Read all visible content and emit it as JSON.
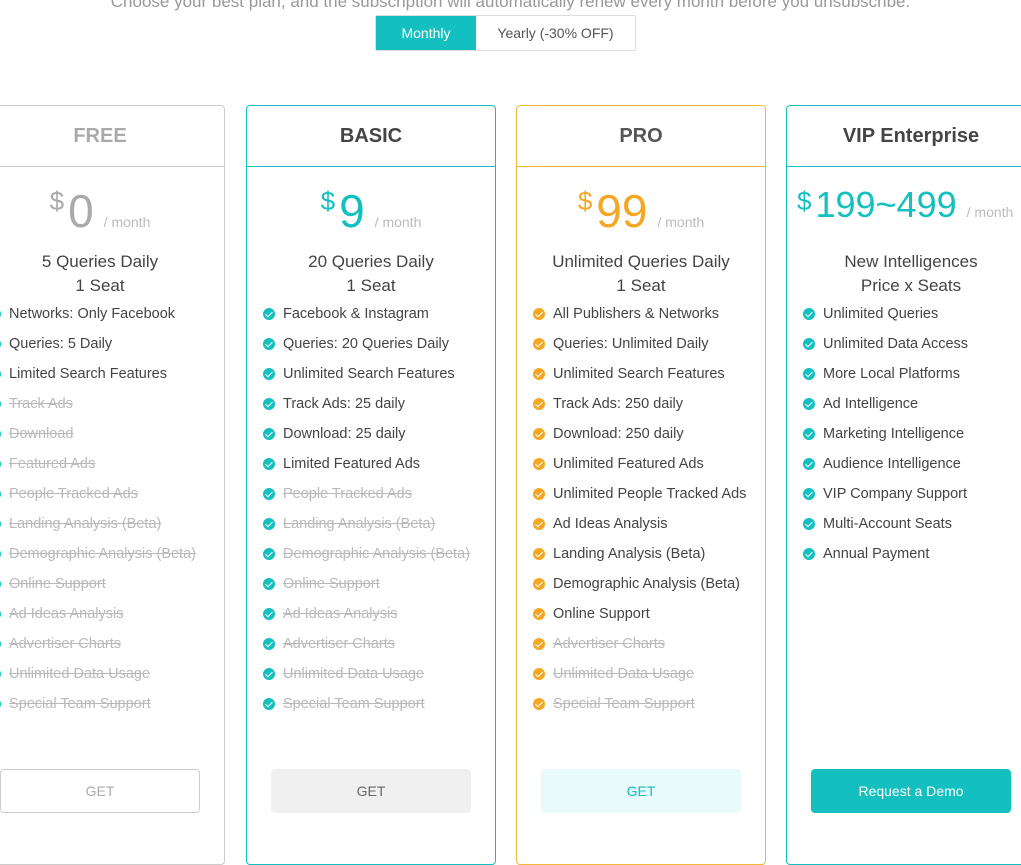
{
  "subtitle": "Choose your best plan, and the subscription will automatically renew every month before you unsubscribe.",
  "billing_toggle": {
    "monthly": "Monthly",
    "yearly": "Yearly (-30% OFF)",
    "selected": "Monthly"
  },
  "colors": {
    "teal": "#13bfbf",
    "orange": "#f5a623",
    "grey": "#cccccc"
  },
  "plans": [
    {
      "name": "FREE",
      "currency": "$",
      "price": "0",
      "period": "/ month",
      "queries": "5 Queries Daily",
      "seats": "1 Seat",
      "features": [
        {
          "text": "Networks: Only Facebook",
          "enabled": true
        },
        {
          "text": "Queries: 5 Daily",
          "enabled": true
        },
        {
          "text": "Limited Search Features",
          "enabled": true
        },
        {
          "text": "Track Ads",
          "enabled": false
        },
        {
          "text": "Download",
          "enabled": false
        },
        {
          "text": "Featured Ads",
          "enabled": false
        },
        {
          "text": "People Tracked Ads",
          "enabled": false
        },
        {
          "text": "Landing Analysis (Beta)",
          "enabled": false
        },
        {
          "text": "Demographic Analysis (Beta)",
          "enabled": false
        },
        {
          "text": "Online Support",
          "enabled": false
        },
        {
          "text": "Ad Ideas Analysis",
          "enabled": false
        },
        {
          "text": "Advertiser Charts",
          "enabled": false
        },
        {
          "text": "Unlimited Data Usage",
          "enabled": false
        },
        {
          "text": "Special Team Support",
          "enabled": false
        }
      ],
      "button": "GET"
    },
    {
      "name": "BASIC",
      "currency": "$",
      "price": "9",
      "period": "/ month",
      "queries": "20 Queries Daily",
      "seats": "1 Seat",
      "features": [
        {
          "text": "Facebook & Instagram",
          "enabled": true
        },
        {
          "text": "Queries: 20 Queries Daily",
          "enabled": true
        },
        {
          "text": "Unlimited Search Features",
          "enabled": true
        },
        {
          "text": "Track Ads: 25 daily",
          "enabled": true
        },
        {
          "text": "Download: 25 daily",
          "enabled": true
        },
        {
          "text": "Limited Featured Ads",
          "enabled": true
        },
        {
          "text": "People Tracked Ads",
          "enabled": false
        },
        {
          "text": "Landing Analysis (Beta)",
          "enabled": false
        },
        {
          "text": "Demographic Analysis (Beta)",
          "enabled": false
        },
        {
          "text": "Online Support",
          "enabled": false
        },
        {
          "text": "Ad Ideas Analysis",
          "enabled": false
        },
        {
          "text": "Advertiser Charts",
          "enabled": false
        },
        {
          "text": "Unlimited Data Usage",
          "enabled": false
        },
        {
          "text": "Special Team Support",
          "enabled": false
        }
      ],
      "button": "GET"
    },
    {
      "name": "PRO",
      "currency": "$",
      "price": "99",
      "period": "/ month",
      "queries": "Unlimited Queries Daily",
      "seats": "1 Seat",
      "features": [
        {
          "text": "All Publishers & Networks",
          "enabled": true
        },
        {
          "text": "Queries: Unlimited Daily",
          "enabled": true
        },
        {
          "text": "Unlimited Search Features",
          "enabled": true
        },
        {
          "text": "Track Ads: 250 daily",
          "enabled": true
        },
        {
          "text": "Download: 250 daily",
          "enabled": true
        },
        {
          "text": "Unlimited Featured Ads",
          "enabled": true
        },
        {
          "text": "Unlimited People Tracked Ads",
          "enabled": true
        },
        {
          "text": "Ad Ideas Analysis",
          "enabled": true
        },
        {
          "text": "Landing Analysis (Beta)",
          "enabled": true
        },
        {
          "text": "Demographic Analysis (Beta)",
          "enabled": true
        },
        {
          "text": "Online Support",
          "enabled": true
        },
        {
          "text": "Advertiser Charts",
          "enabled": false
        },
        {
          "text": "Unlimited Data Usage",
          "enabled": false
        },
        {
          "text": "Special Team Support",
          "enabled": false
        }
      ],
      "button": "GET"
    },
    {
      "name": "VIP Enterprise",
      "currency": "$",
      "price": "199~499",
      "period": "/ month",
      "queries": "New Intelligences",
      "seats": "Price x Seats",
      "features": [
        {
          "text": "Unlimited Queries",
          "enabled": true
        },
        {
          "text": "Unlimited Data Access",
          "enabled": true
        },
        {
          "text": "More Local Platforms",
          "enabled": true
        },
        {
          "text": "Ad Intelligence",
          "enabled": true
        },
        {
          "text": "Marketing Intelligence",
          "enabled": true
        },
        {
          "text": "Audience Intelligence",
          "enabled": true
        },
        {
          "text": "VIP Company Support",
          "enabled": true
        },
        {
          "text": "Multi-Account Seats",
          "enabled": true
        },
        {
          "text": "Annual Payment",
          "enabled": true
        }
      ],
      "button": "Request a Demo"
    }
  ]
}
